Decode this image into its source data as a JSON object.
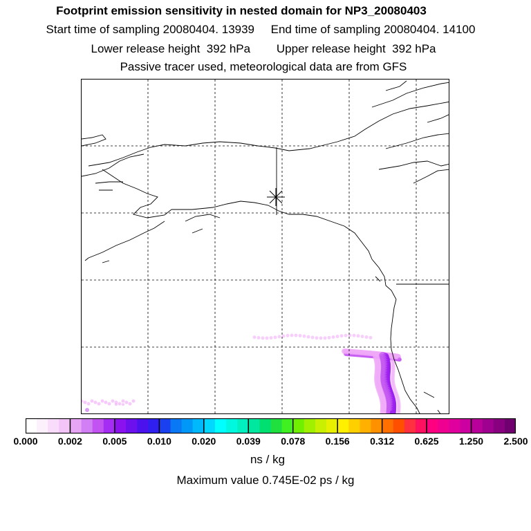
{
  "header": {
    "title": "Footprint emission sensitivity in nested domain for NP3_20080403",
    "line2": "Start time of sampling 20080404. 13939     End time of sampling 20080404. 14100",
    "line3": "Lower release height  392 hPa        Upper release height  392 hPa",
    "line4": "Passive tracer used, meteorological data are from GFS"
  },
  "map": {
    "markers": [
      {
        "name": "release-point",
        "symbol": "star"
      }
    ],
    "plume_color_light": "#f0a8f8",
    "plume_color_mid": "#c65cf2",
    "plume_color_dark": "#9b1cf0"
  },
  "colorbar": {
    "colors": [
      "#ffffff",
      "#fdf0fd",
      "#f9dcfb",
      "#f3c4f8",
      "#e7a6f5",
      "#d27ef5",
      "#c352f3",
      "#a52cf2",
      "#8b12ee",
      "#6c10ee",
      "#4b12ee",
      "#3020f0",
      "#1a40f0",
      "#0a78f5",
      "#0098f8",
      "#00b8fc",
      "#00d8ff",
      "#00ffff",
      "#00f8e0",
      "#00f0c0",
      "#00e8a0",
      "#00e070",
      "#20e040",
      "#40f020",
      "#70f000",
      "#a0f000",
      "#c8f000",
      "#e8f000",
      "#fff000",
      "#ffd000",
      "#ffb000",
      "#ff9000",
      "#ff7000",
      "#ff5000",
      "#ff3040",
      "#ff1060",
      "#ff0080",
      "#f00090",
      "#e0009e",
      "#cc00a0",
      "#b8009a",
      "#a00090",
      "#880080",
      "#700070"
    ],
    "tick_labels": [
      "0.000",
      "0.002",
      "0.005",
      "0.010",
      "0.020",
      "0.039",
      "0.078",
      "0.156",
      "0.312",
      "0.625",
      "1.250",
      "2.500"
    ],
    "units": "ns / kg"
  },
  "footer": {
    "max_value": "Maximum value  0.745E-02 ps / kg"
  }
}
